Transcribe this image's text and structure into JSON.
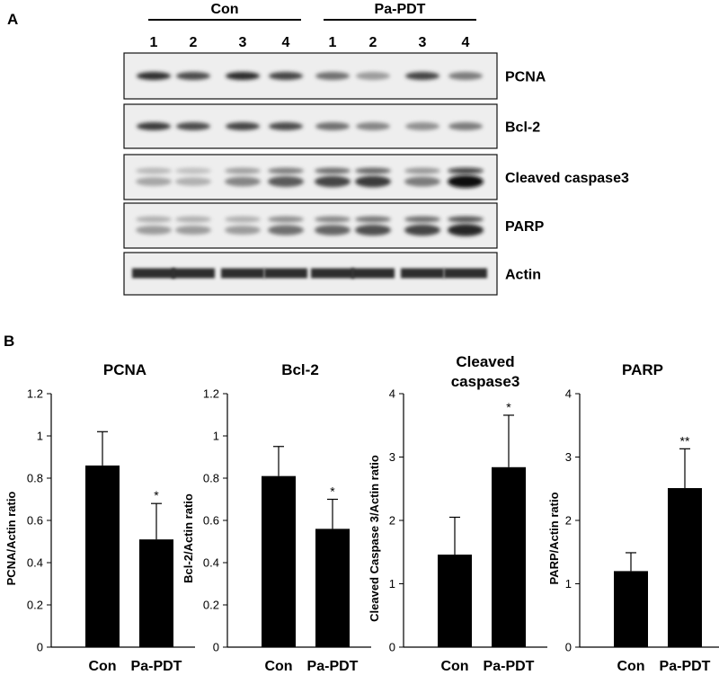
{
  "figure": {
    "panel_a_letter": "A",
    "panel_b_letter": "B"
  },
  "western_blot": {
    "groups": [
      {
        "name": "Con",
        "lanes": [
          "1",
          "2",
          "3",
          "4"
        ]
      },
      {
        "name": "Pa-PDT",
        "lanes": [
          "1",
          "2",
          "3",
          "4"
        ]
      }
    ],
    "blots": [
      {
        "label": "PCNA",
        "band_intensity": [
          0.85,
          0.72,
          0.88,
          0.75,
          0.55,
          0.35,
          0.75,
          0.5
        ]
      },
      {
        "label": "Bcl-2",
        "band_intensity": [
          0.8,
          0.72,
          0.75,
          0.72,
          0.55,
          0.45,
          0.4,
          0.5
        ]
      },
      {
        "label": "Cleaved caspase3",
        "band_intensity": [
          0.3,
          0.25,
          0.45,
          0.65,
          0.75,
          0.8,
          0.5,
          1.0
        ]
      },
      {
        "label": "PARP",
        "band_intensity": [
          0.35,
          0.35,
          0.35,
          0.55,
          0.6,
          0.7,
          0.75,
          0.9
        ]
      },
      {
        "label": "Actin",
        "band_intensity": [
          0.85,
          0.85,
          0.85,
          0.85,
          0.85,
          0.85,
          0.85,
          0.85
        ]
      }
    ]
  },
  "chart_data": [
    {
      "type": "bar",
      "title": "PCNA",
      "ylabel": "PCNA/Actin ratio",
      "categories": [
        "Con",
        "Pa-PDT"
      ],
      "values": [
        0.86,
        0.51
      ],
      "errors": [
        0.16,
        0.17
      ],
      "significance": [
        "",
        "*"
      ],
      "ylim": [
        0,
        1.2
      ],
      "yticks": [
        "0",
        "0.2",
        "0.4",
        "0.6",
        "0.8",
        "1",
        "1.2"
      ]
    },
    {
      "type": "bar",
      "title": "Bcl-2",
      "ylabel": "Bcl-2/Actin ratio",
      "categories": [
        "Con",
        "Pa-PDT"
      ],
      "values": [
        0.81,
        0.56
      ],
      "errors": [
        0.14,
        0.14
      ],
      "significance": [
        "",
        "*"
      ],
      "ylim": [
        0,
        1.2
      ],
      "yticks": [
        "0",
        "0.2",
        "0.4",
        "0.6",
        "0.8",
        "1",
        "1.2"
      ]
    },
    {
      "type": "bar",
      "title": "Cleaved\ncaspase3",
      "ylabel": "Cleaved Caspase 3/Actin ratio",
      "categories": [
        "Con",
        "Pa-PDT"
      ],
      "values": [
        1.46,
        2.84
      ],
      "errors": [
        0.59,
        0.82
      ],
      "significance": [
        "",
        "*"
      ],
      "ylim": [
        0,
        4
      ],
      "yticks": [
        "0",
        "1",
        "2",
        "3",
        "4"
      ]
    },
    {
      "type": "bar",
      "title": "PARP",
      "ylabel": "PARP/Actin ratio",
      "categories": [
        "Con",
        "Pa-PDT"
      ],
      "values": [
        1.2,
        2.51
      ],
      "errors": [
        0.29,
        0.62
      ],
      "significance": [
        "",
        "**"
      ],
      "ylim": [
        0,
        4
      ],
      "yticks": [
        "0",
        "1",
        "2",
        "3",
        "4"
      ]
    }
  ]
}
